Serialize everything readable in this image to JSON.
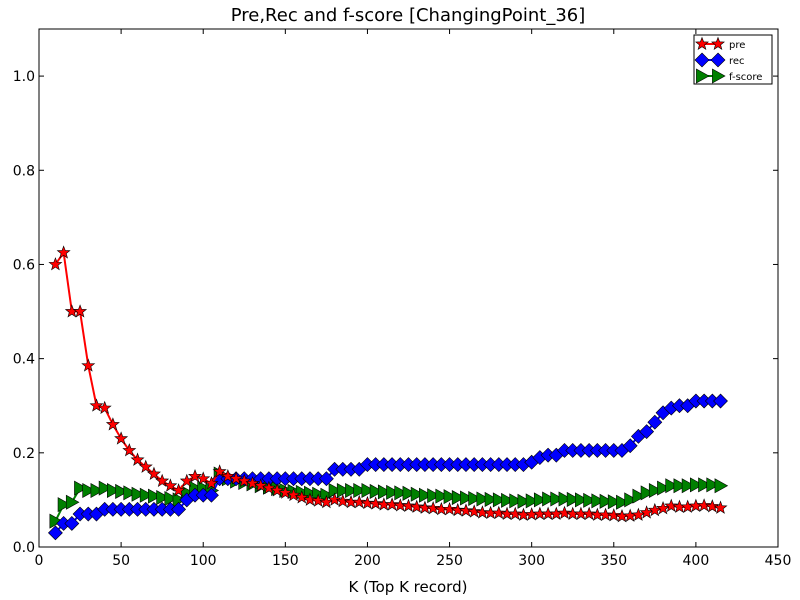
{
  "chart_data": {
    "type": "line",
    "title": "Pre,Rec and f-score [ChangingPoint_36]",
    "xlabel": "K (Top K record)",
    "ylabel": "",
    "xlim": [
      0,
      450
    ],
    "ylim": [
      0,
      1.1
    ],
    "xticks": [
      0,
      50,
      100,
      150,
      200,
      250,
      300,
      350,
      400,
      450
    ],
    "yticks": [
      0.0,
      0.2,
      0.4,
      0.6,
      0.8,
      1.0
    ],
    "ytick_labels": [
      "0.0",
      "0.2",
      "0.4",
      "0.6",
      "0.8",
      "1.0"
    ],
    "grid": false,
    "legend_position": "top-right",
    "x": [
      10,
      15,
      20,
      25,
      30,
      35,
      40,
      45,
      50,
      55,
      60,
      65,
      70,
      75,
      80,
      85,
      90,
      95,
      100,
      105,
      110,
      115,
      120,
      125,
      130,
      135,
      140,
      145,
      150,
      155,
      160,
      165,
      170,
      175,
      180,
      185,
      190,
      195,
      200,
      205,
      210,
      215,
      220,
      225,
      230,
      235,
      240,
      245,
      250,
      255,
      260,
      265,
      270,
      275,
      280,
      285,
      290,
      295,
      300,
      305,
      310,
      315,
      320,
      325,
      330,
      335,
      340,
      345,
      350,
      355,
      360,
      365,
      370,
      375,
      380,
      385,
      390,
      395,
      400,
      405,
      410,
      415
    ],
    "series": [
      {
        "name": "pre",
        "color": "#ff0000",
        "marker": "star",
        "values": [
          0.6,
          0.625,
          0.5,
          0.5,
          0.385,
          0.3,
          0.295,
          0.26,
          0.23,
          0.205,
          0.185,
          0.17,
          0.155,
          0.14,
          0.13,
          0.12,
          0.14,
          0.15,
          0.145,
          0.135,
          0.16,
          0.15,
          0.145,
          0.14,
          0.135,
          0.13,
          0.125,
          0.12,
          0.115,
          0.11,
          0.105,
          0.1,
          0.098,
          0.095,
          0.1,
          0.097,
          0.095,
          0.095,
          0.093,
          0.092,
          0.09,
          0.09,
          0.088,
          0.087,
          0.085,
          0.083,
          0.082,
          0.08,
          0.08,
          0.078,
          0.077,
          0.075,
          0.073,
          0.072,
          0.072,
          0.07,
          0.07,
          0.068,
          0.069,
          0.07,
          0.07,
          0.07,
          0.072,
          0.07,
          0.07,
          0.07,
          0.068,
          0.068,
          0.067,
          0.065,
          0.066,
          0.068,
          0.073,
          0.078,
          0.082,
          0.087,
          0.085,
          0.085,
          0.087,
          0.088,
          0.086,
          0.083
        ]
      },
      {
        "name": "rec",
        "color": "#0000ff",
        "marker": "diamond",
        "values": [
          0.03,
          0.05,
          0.05,
          0.07,
          0.07,
          0.07,
          0.08,
          0.08,
          0.08,
          0.08,
          0.08,
          0.08,
          0.08,
          0.08,
          0.08,
          0.08,
          0.1,
          0.11,
          0.11,
          0.11,
          0.145,
          0.145,
          0.145,
          0.145,
          0.145,
          0.145,
          0.145,
          0.145,
          0.145,
          0.145,
          0.145,
          0.145,
          0.145,
          0.145,
          0.165,
          0.165,
          0.165,
          0.165,
          0.175,
          0.175,
          0.175,
          0.175,
          0.175,
          0.175,
          0.175,
          0.175,
          0.175,
          0.175,
          0.175,
          0.175,
          0.175,
          0.175,
          0.175,
          0.175,
          0.175,
          0.175,
          0.175,
          0.175,
          0.18,
          0.19,
          0.195,
          0.195,
          0.205,
          0.205,
          0.205,
          0.205,
          0.205,
          0.205,
          0.205,
          0.205,
          0.215,
          0.235,
          0.245,
          0.265,
          0.285,
          0.295,
          0.3,
          0.3,
          0.31,
          0.31,
          0.31,
          0.31
        ]
      },
      {
        "name": "f-score",
        "color": "#008000",
        "marker": "triangle-right",
        "values": [
          0.055,
          0.09,
          0.095,
          0.125,
          0.12,
          0.12,
          0.125,
          0.12,
          0.118,
          0.115,
          0.112,
          0.11,
          0.108,
          0.105,
          0.103,
          0.1,
          0.115,
          0.125,
          0.125,
          0.12,
          0.155,
          0.145,
          0.14,
          0.137,
          0.134,
          0.13,
          0.127,
          0.124,
          0.12,
          0.118,
          0.116,
          0.114,
          0.112,
          0.11,
          0.12,
          0.12,
          0.12,
          0.12,
          0.12,
          0.118,
          0.117,
          0.116,
          0.115,
          0.114,
          0.112,
          0.11,
          0.109,
          0.108,
          0.107,
          0.105,
          0.104,
          0.103,
          0.102,
          0.101,
          0.1,
          0.099,
          0.098,
          0.097,
          0.098,
          0.1,
          0.102,
          0.102,
          0.102,
          0.101,
          0.1,
          0.099,
          0.098,
          0.097,
          0.096,
          0.095,
          0.1,
          0.108,
          0.115,
          0.12,
          0.125,
          0.13,
          0.13,
          0.13,
          0.132,
          0.132,
          0.132,
          0.13
        ]
      }
    ]
  }
}
